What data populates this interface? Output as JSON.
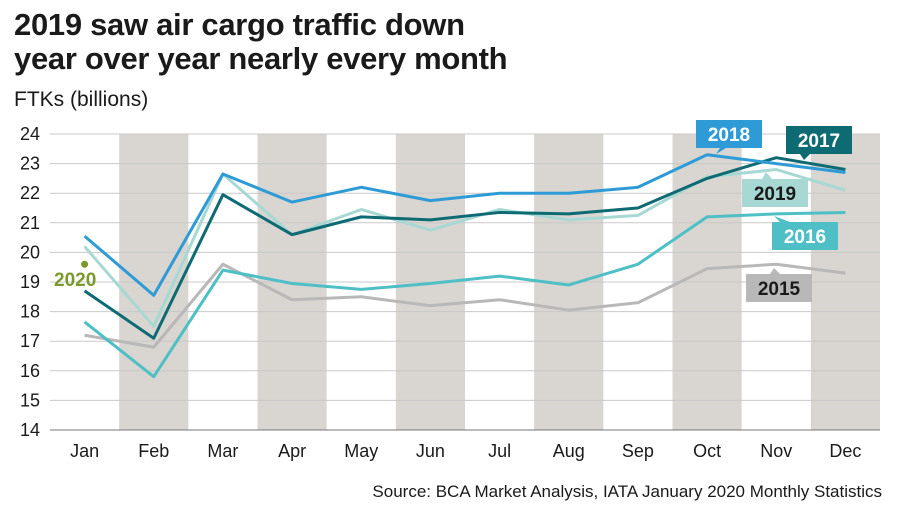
{
  "title_line1": "2019 saw air cargo traffic down",
  "title_line2": "year over year nearly every month",
  "subtitle": "FTKs (billions)",
  "source": "Source: BCA Market Analysis, IATA January 2020 Monthly Statistics",
  "chart_data": {
    "type": "line",
    "title": "2019 saw air cargo traffic down year over year nearly every month",
    "ylabel": "FTKs (billions)",
    "xlabel": "",
    "ylim": [
      14,
      24
    ],
    "yticks": [
      "24",
      "23",
      "22",
      "21",
      "20",
      "19",
      "18",
      "17",
      "16",
      "15",
      "14"
    ],
    "categories": [
      "Jan",
      "Feb",
      "Mar",
      "Apr",
      "May",
      "Jun",
      "Jul",
      "Aug",
      "Sep",
      "Oct",
      "Nov",
      "Dec"
    ],
    "grid": true,
    "alternating_column_shading": true,
    "series": [
      {
        "name": "2015",
        "color": "#b8b8b8",
        "values": [
          17.2,
          16.8,
          19.6,
          18.4,
          18.5,
          18.2,
          18.4,
          18.05,
          18.3,
          19.45,
          19.6,
          19.3
        ]
      },
      {
        "name": "2016",
        "color": "#4fbfc6",
        "values": [
          17.65,
          15.8,
          19.4,
          18.95,
          18.75,
          18.95,
          19.2,
          18.9,
          19.6,
          21.2,
          21.3,
          21.35
        ]
      },
      {
        "name": "2019",
        "color": "#a8d8d4",
        "values": [
          20.2,
          17.5,
          22.65,
          20.6,
          21.45,
          20.75,
          21.45,
          21.1,
          21.25,
          22.55,
          22.8,
          22.1
        ]
      },
      {
        "name": "2017",
        "color": "#0e6b73",
        "values": [
          18.7,
          17.1,
          21.95,
          20.6,
          21.2,
          21.1,
          21.35,
          21.3,
          21.5,
          22.5,
          23.2,
          22.8
        ]
      },
      {
        "name": "2018",
        "color": "#2e9bd6",
        "values": [
          20.55,
          18.55,
          22.65,
          21.7,
          22.2,
          21.75,
          22.0,
          22.0,
          22.2,
          23.3,
          23.0,
          22.7
        ]
      },
      {
        "name": "2020",
        "color": "#7a9a2e",
        "values": [
          19.6,
          null,
          null,
          null,
          null,
          null,
          null,
          null,
          null,
          null,
          null,
          null
        ]
      }
    ]
  }
}
